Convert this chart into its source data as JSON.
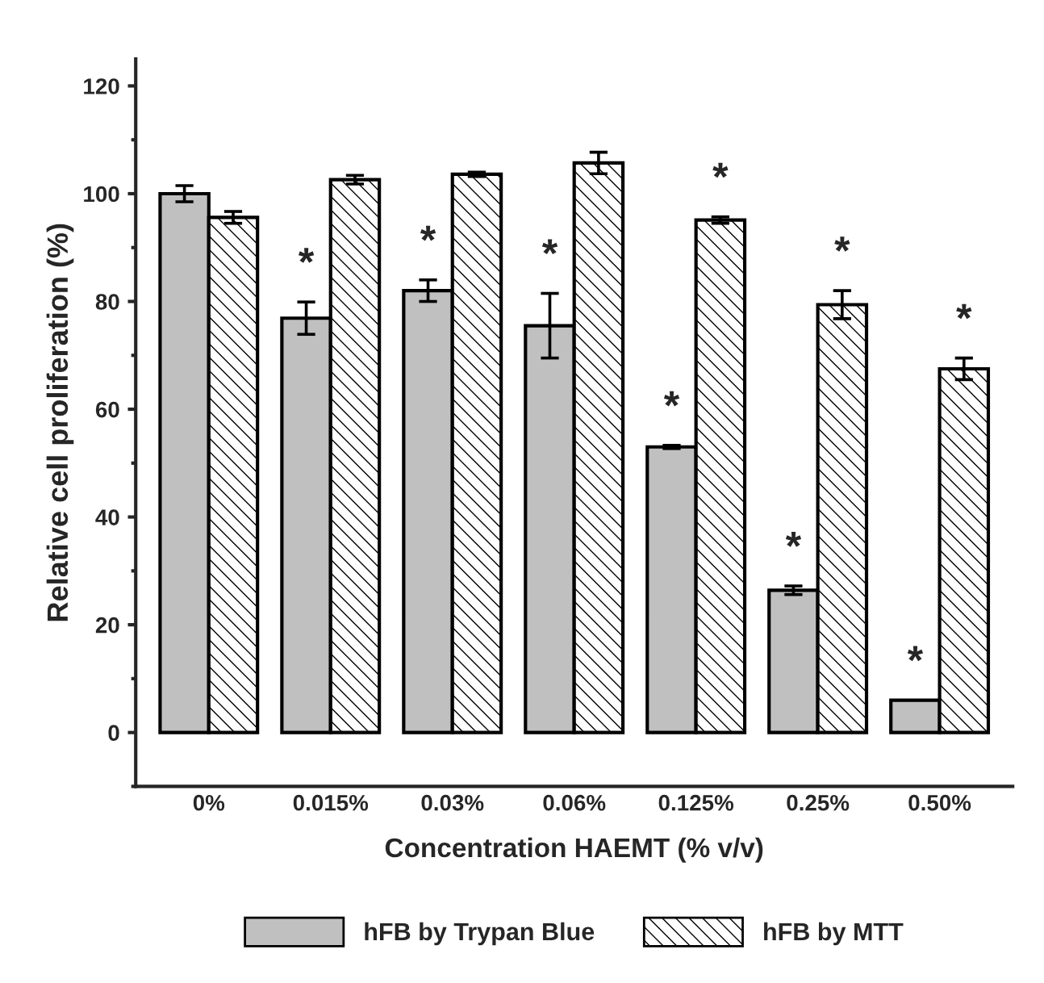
{
  "chart_data": {
    "type": "bar",
    "xlabel": "Concentration HAEMT (% v/v)",
    "ylabel": "Relative cell proliferation (%)",
    "categories": [
      "0%",
      "0.015%",
      "0.03%",
      "0.06%",
      "0.125%",
      "0.25%",
      "0.50%"
    ],
    "series": [
      {
        "name": "hFB by Trypan Blue",
        "color": "#c0c0c0",
        "values": [
          100,
          76.9,
          82,
          75.5,
          53,
          26.4,
          6
        ],
        "errors": [
          1.5,
          3,
          2,
          6,
          0.3,
          0.8,
          null
        ]
      },
      {
        "name": "hFB by MTT",
        "color": "#000000",
        "values": [
          95.6,
          102.6,
          103.6,
          105.7,
          95.1,
          79.4,
          67.5
        ],
        "errors": [
          1.1,
          0.8,
          0.4,
          2,
          0.6,
          2.6,
          2
        ]
      }
    ],
    "annotations": [
      {
        "text": "*",
        "x": "0.015%",
        "y": 76.9
      },
      {
        "text": "*",
        "x": "0.03%",
        "y": 82
      },
      {
        "text": "*",
        "x": "0.06%",
        "y": 75.5
      },
      {
        "text": "*",
        "x": "0.125%",
        "y": 53
      },
      {
        "text": "*",
        "x": "0.125%",
        "y": 95.1
      },
      {
        "text": "*",
        "x": "0.25%",
        "y": 26.4
      },
      {
        "text": "*",
        "x": "0.25%",
        "y": 79.4
      },
      {
        "text": "*",
        "x": "0.50%",
        "y": 6
      },
      {
        "text": "*",
        "x": "0.50%",
        "y": 67.5
      }
    ],
    "ylim": [
      -10,
      125
    ],
    "yticks": [
      0,
      20,
      40,
      60,
      80,
      100,
      120
    ],
    "grid": false,
    "legend": "bottom"
  }
}
